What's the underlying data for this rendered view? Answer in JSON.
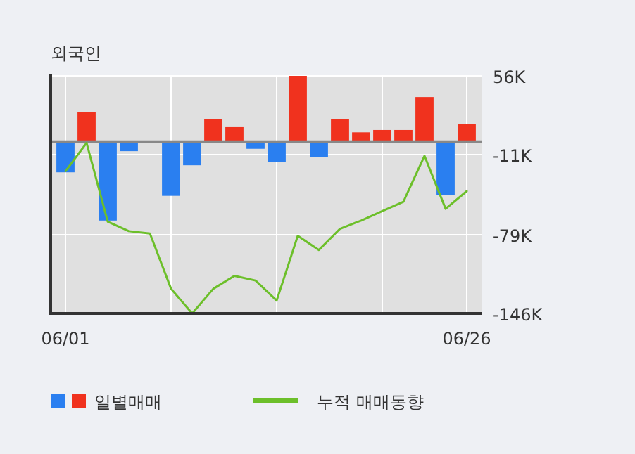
{
  "chart_data": {
    "type": "bar",
    "title": "외국인",
    "categories": [
      "06/01",
      null,
      null,
      null,
      null,
      null,
      null,
      null,
      null,
      null,
      null,
      null,
      null,
      null,
      null,
      null,
      null,
      null,
      null,
      "06/26"
    ],
    "series": [
      {
        "name": "일별매매",
        "colors": [
          "#2a7ff0",
          "#f0321e",
          "#2a7ff0",
          "#2a7ff0",
          "#2a7ff0",
          "#2a7ff0",
          "#2a7ff0",
          "#f0321e",
          "#f0321e",
          "#2a7ff0",
          "#2a7ff0",
          "#f0321e",
          "#2a7ff0",
          "#f0321e",
          "#f0321e",
          "#f0321e",
          "#f0321e",
          "#f0321e",
          "#2a7ff0",
          "#f0321e"
        ],
        "values": [
          -26,
          25,
          -67,
          -8,
          0,
          -46,
          -20,
          19,
          13,
          -6,
          -17,
          56,
          -13,
          19,
          8,
          10,
          10,
          38,
          -45,
          15
        ]
      },
      {
        "name": "누적 매매동향",
        "type": "line",
        "color": "#6cbf2a",
        "values": [
          -25,
          -1,
          -68,
          -76,
          -78,
          -125,
          -146,
          -125,
          -114,
          -118,
          -135,
          -80,
          -92,
          -74,
          -67,
          -59,
          -51,
          -12,
          -57,
          -42
        ]
      }
    ],
    "ylim": [
      -146,
      56
    ],
    "yticks": [
      {
        "value": 56,
        "label": "56K"
      },
      {
        "value": -11,
        "label": "-11K"
      },
      {
        "value": -79,
        "label": "-79K"
      },
      {
        "value": -146,
        "label": "-146K"
      }
    ],
    "ref_lines": [
      {
        "axis": "y",
        "value": 0,
        "color": "#888888"
      }
    ],
    "grid": true,
    "legend": "bottom"
  }
}
